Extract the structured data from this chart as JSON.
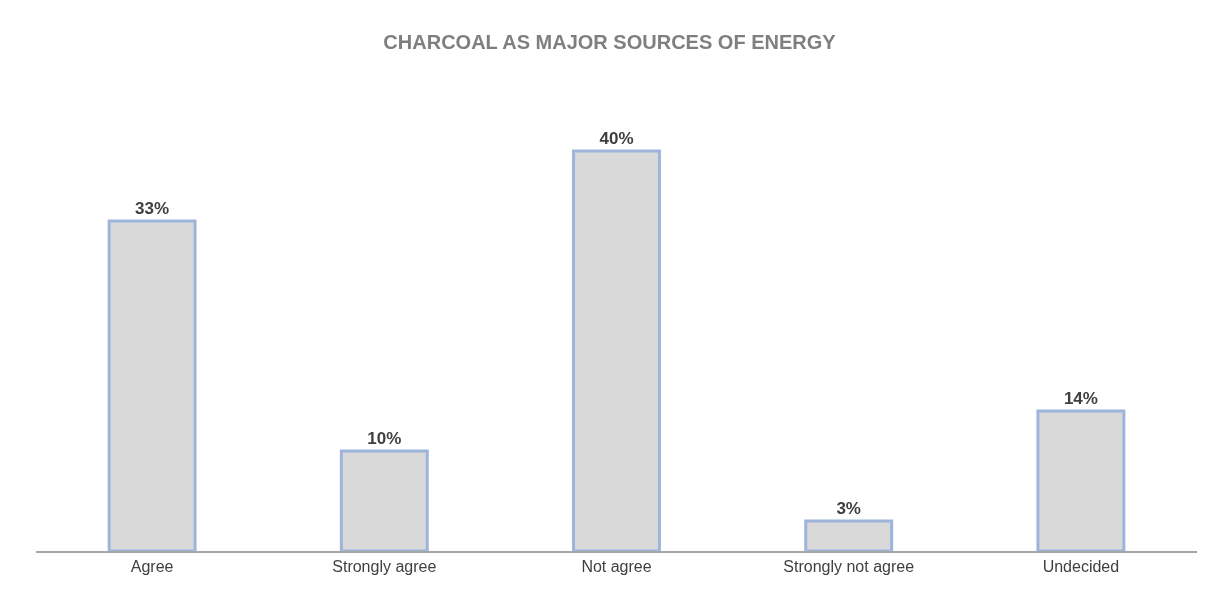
{
  "chart_data": {
    "type": "bar",
    "title": "CHARCOAL AS MAJOR SOURCES OF ENERGY",
    "categories": [
      "Agree",
      "Strongly agree",
      "Not agree",
      "Strongly not agree",
      "Undecided"
    ],
    "values": [
      33,
      10,
      40,
      3,
      14
    ],
    "value_labels": [
      "33%",
      "10%",
      "40%",
      "3%",
      "14%"
    ],
    "color": "#d9d9d9",
    "tick_labels": "x"
  }
}
